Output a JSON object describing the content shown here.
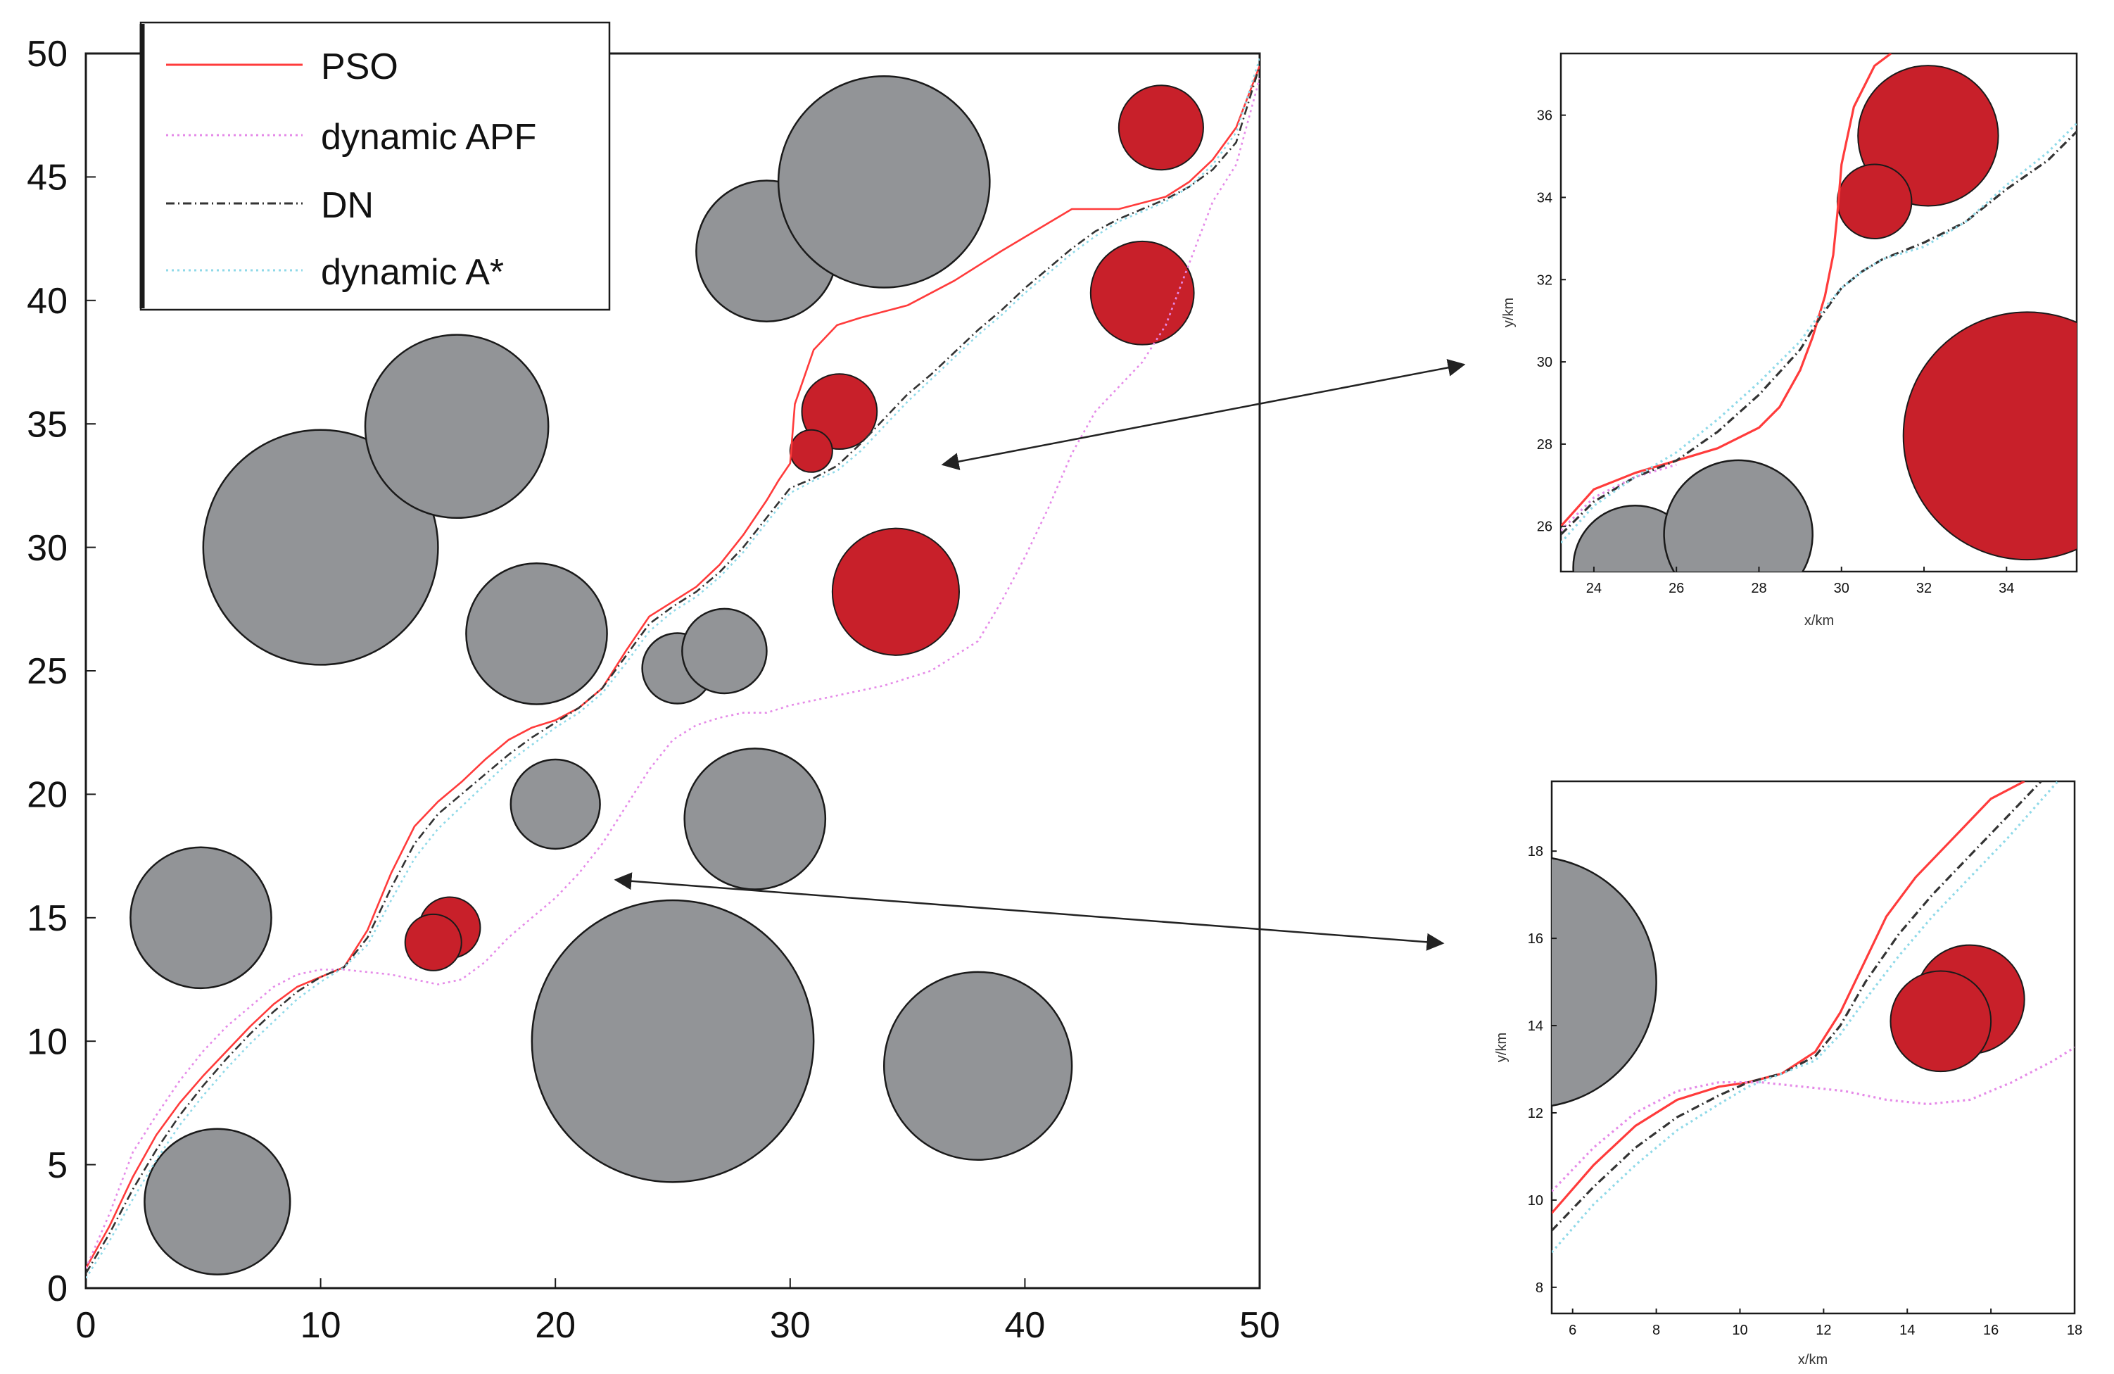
{
  "colors": {
    "pso": "#ff3b3b",
    "apf": "#e58ae8",
    "dn": "#333333",
    "astar": "#8fd9e8",
    "static_obstacle": "#929497",
    "dynamic_obstacle": "#c8202a",
    "outline": "#1a1a1a"
  },
  "chart_data": [
    {
      "id": "main",
      "type": "line",
      "title": "",
      "xlabel": "",
      "ylabel": "",
      "xlim": [
        0,
        50
      ],
      "ylim": [
        0,
        50
      ],
      "xticks": [
        0,
        10,
        20,
        30,
        40,
        50
      ],
      "yticks": [
        0,
        5,
        10,
        15,
        20,
        25,
        30,
        35,
        40,
        45,
        50
      ],
      "legend": {
        "position": "top-left",
        "entries": [
          {
            "label": "PSO",
            "series": "pso"
          },
          {
            "label": "dynamic APF",
            "series": "apf"
          },
          {
            "label": "DN",
            "series": "dn"
          },
          {
            "label": "dynamic A*",
            "series": "astar"
          }
        ]
      },
      "static_obstacles": [
        {
          "cx": 5.6,
          "cy": 3.5,
          "r": 3.1
        },
        {
          "cx": 4.9,
          "cy": 15.0,
          "r": 3.0
        },
        {
          "cx": 10.0,
          "cy": 30.0,
          "r": 5.0
        },
        {
          "cx": 15.8,
          "cy": 34.9,
          "r": 3.9
        },
        {
          "cx": 19.2,
          "cy": 26.5,
          "r": 3.0
        },
        {
          "cx": 20.0,
          "cy": 19.6,
          "r": 1.9
        },
        {
          "cx": 25.0,
          "cy": 10.0,
          "r": 6.0
        },
        {
          "cx": 25.2,
          "cy": 25.1,
          "r": 1.5
        },
        {
          "cx": 27.2,
          "cy": 25.8,
          "r": 1.8
        },
        {
          "cx": 28.5,
          "cy": 19.0,
          "r": 3.0
        },
        {
          "cx": 29.0,
          "cy": 42.0,
          "r": 3.0
        },
        {
          "cx": 34.0,
          "cy": 44.8,
          "r": 4.5
        },
        {
          "cx": 38.0,
          "cy": 9.0,
          "r": 4.0
        }
      ],
      "dynamic_obstacles": [
        {
          "cx": 15.5,
          "cy": 14.6,
          "r": 1.3
        },
        {
          "cx": 14.8,
          "cy": 14.0,
          "r": 1.2
        },
        {
          "cx": 32.1,
          "cy": 35.5,
          "r": 1.6
        },
        {
          "cx": 30.9,
          "cy": 33.9,
          "r": 0.9
        },
        {
          "cx": 34.5,
          "cy": 28.2,
          "r": 2.7
        },
        {
          "cx": 45.0,
          "cy": 40.3,
          "r": 2.2
        },
        {
          "cx": 45.8,
          "cy": 47.0,
          "r": 1.8
        }
      ],
      "series": [
        {
          "name": "PSO",
          "key": "pso",
          "style": "solid",
          "x": [
            0,
            1,
            2,
            3,
            4,
            5,
            6,
            7,
            8,
            9,
            10,
            11,
            12,
            13,
            14,
            15,
            16,
            17,
            18,
            19,
            20,
            21,
            22,
            23,
            24,
            25,
            26,
            27,
            28,
            29,
            29.5,
            30,
            30.2,
            31,
            32,
            33,
            35,
            37,
            39,
            42,
            44,
            46,
            47,
            48,
            49,
            50
          ],
          "y": [
            0.8,
            2.5,
            4.5,
            6.2,
            7.5,
            8.6,
            9.6,
            10.6,
            11.5,
            12.2,
            12.6,
            13.0,
            14.5,
            16.8,
            18.7,
            19.7,
            20.5,
            21.4,
            22.2,
            22.7,
            23.0,
            23.5,
            24.3,
            25.8,
            27.2,
            27.8,
            28.4,
            29.3,
            30.5,
            31.9,
            32.7,
            33.4,
            35.8,
            38.0,
            39.0,
            39.3,
            39.8,
            40.8,
            42.0,
            43.7,
            43.7,
            44.2,
            44.8,
            45.7,
            47.0,
            49.5
          ]
        },
        {
          "name": "dynamic APF",
          "key": "apf",
          "style": "dotted",
          "x": [
            0,
            1,
            2,
            3,
            4,
            5,
            6,
            7,
            8,
            9,
            10,
            11,
            12,
            13,
            14,
            15,
            16,
            17,
            18,
            19,
            20,
            21,
            22,
            23,
            24,
            25,
            26,
            27,
            28,
            29,
            30,
            32,
            34,
            36,
            38,
            39,
            40,
            41,
            42,
            43,
            44,
            45,
            46,
            47,
            48,
            49,
            50
          ],
          "y": [
            0.8,
            3.0,
            5.5,
            7.0,
            8.4,
            9.6,
            10.6,
            11.4,
            12.2,
            12.7,
            12.9,
            12.9,
            12.8,
            12.7,
            12.5,
            12.3,
            12.5,
            13.2,
            14.2,
            15.0,
            15.8,
            16.8,
            18.0,
            19.5,
            21.0,
            22.2,
            22.8,
            23.1,
            23.3,
            23.3,
            23.6,
            24.0,
            24.4,
            25.0,
            26.2,
            27.8,
            29.6,
            31.6,
            33.8,
            35.5,
            36.5,
            37.5,
            39.0,
            41.5,
            44.0,
            45.5,
            49.0
          ]
        },
        {
          "name": "DN",
          "key": "dn",
          "style": "dashdot",
          "x": [
            0,
            1,
            2,
            3,
            4,
            5,
            6,
            7,
            8,
            9,
            10,
            11,
            12,
            13,
            14,
            15,
            16,
            17,
            18,
            19,
            20,
            21,
            22,
            23,
            24,
            25,
            26,
            27,
            28,
            29,
            30,
            31,
            32,
            33,
            34,
            35,
            36,
            37,
            38,
            39,
            40,
            41,
            42,
            43,
            44,
            45,
            46,
            47,
            48,
            49,
            50
          ],
          "y": [
            0.6,
            2.2,
            4.0,
            5.6,
            7.0,
            8.2,
            9.3,
            10.3,
            11.2,
            12.0,
            12.6,
            13.0,
            14.2,
            16.2,
            18.0,
            19.2,
            20.0,
            20.8,
            21.6,
            22.3,
            22.9,
            23.5,
            24.3,
            25.6,
            26.9,
            27.6,
            28.2,
            29.0,
            30.0,
            31.2,
            32.4,
            32.8,
            33.3,
            34.2,
            35.2,
            36.2,
            37.0,
            37.9,
            38.8,
            39.6,
            40.5,
            41.3,
            42.1,
            42.8,
            43.3,
            43.7,
            44.1,
            44.6,
            45.3,
            46.4,
            49.5
          ]
        },
        {
          "name": "dynamic A*",
          "key": "astar",
          "style": "dotted",
          "x": [
            0,
            1,
            2,
            3,
            4,
            5,
            6,
            7,
            8,
            9,
            10,
            11,
            12,
            13,
            14,
            15,
            16,
            17,
            18,
            19,
            20,
            21,
            22,
            23,
            24,
            25,
            26,
            27,
            28,
            29,
            30,
            31,
            32,
            33,
            34,
            35,
            36,
            37,
            38,
            39,
            40,
            41,
            42,
            43,
            44,
            45,
            46,
            47,
            48,
            49,
            50
          ],
          "y": [
            0.4,
            1.9,
            3.6,
            5.2,
            6.6,
            7.8,
            8.9,
            9.9,
            10.8,
            11.7,
            12.4,
            13.0,
            13.9,
            15.7,
            17.4,
            18.6,
            19.5,
            20.4,
            21.3,
            22.0,
            22.7,
            23.3,
            24.1,
            25.3,
            26.6,
            27.4,
            28.0,
            28.8,
            29.8,
            31.0,
            32.2,
            32.7,
            33.1,
            33.9,
            34.9,
            35.9,
            36.8,
            37.7,
            38.6,
            39.4,
            40.3,
            41.1,
            41.9,
            42.6,
            43.2,
            43.6,
            44.0,
            44.6,
            45.5,
            46.8,
            49.8
          ]
        }
      ]
    },
    {
      "id": "inset-top",
      "type": "line",
      "xlabel": "x/km",
      "ylabel": "y/km",
      "xlim": [
        23.2,
        35.7
      ],
      "ylim": [
        24.9,
        37.5
      ],
      "xticks": [
        24,
        26,
        28,
        30,
        32,
        34
      ],
      "yticks": [
        26,
        28,
        30,
        32,
        34,
        36
      ],
      "static_obstacles": [
        {
          "cx": 25.0,
          "cy": 25.0,
          "r": 1.5
        },
        {
          "cx": 27.5,
          "cy": 25.8,
          "r": 1.8
        }
      ],
      "dynamic_obstacles": [
        {
          "cx": 32.1,
          "cy": 35.5,
          "r": 1.7
        },
        {
          "cx": 34.5,
          "cy": 28.2,
          "r": 3.0
        },
        {
          "cx": 30.8,
          "cy": 33.9,
          "r": 0.9
        }
      ],
      "series": [
        {
          "name": "PSO",
          "key": "pso",
          "style": "solid",
          "x": [
            23.2,
            24,
            25,
            26,
            27,
            28,
            28.5,
            29,
            29.3,
            29.6,
            29.8,
            29.9,
            30.0,
            30.3,
            30.8,
            31.2
          ],
          "y": [
            26.0,
            26.9,
            27.3,
            27.6,
            27.9,
            28.4,
            28.9,
            29.8,
            30.6,
            31.6,
            32.6,
            33.6,
            34.8,
            36.2,
            37.2,
            37.5
          ]
        },
        {
          "name": "dynamic APF",
          "key": "apf",
          "style": "dotted",
          "x": [
            23.2,
            24,
            25,
            26
          ],
          "y": [
            25.9,
            26.7,
            27.2,
            27.5
          ]
        },
        {
          "name": "DN",
          "key": "dn",
          "style": "dashdot",
          "x": [
            23.2,
            24,
            25,
            26,
            27,
            28,
            29,
            29.5,
            30,
            30.5,
            31,
            32,
            33,
            34,
            35,
            35.7
          ],
          "y": [
            25.8,
            26.6,
            27.2,
            27.6,
            28.3,
            29.2,
            30.3,
            31.1,
            31.8,
            32.2,
            32.5,
            32.9,
            33.4,
            34.2,
            34.9,
            35.6
          ]
        },
        {
          "name": "dynamic A*",
          "key": "astar",
          "style": "dotted",
          "x": [
            23.2,
            24,
            25,
            26,
            27,
            28,
            29,
            29.5,
            30,
            30.5,
            31,
            32,
            33,
            34,
            35,
            35.7
          ],
          "y": [
            25.6,
            26.5,
            27.2,
            27.8,
            28.6,
            29.5,
            30.5,
            31.2,
            31.8,
            32.2,
            32.5,
            32.8,
            33.4,
            34.3,
            35.1,
            35.8
          ]
        }
      ]
    },
    {
      "id": "inset-bottom",
      "type": "line",
      "xlabel": "x/km",
      "ylabel": "y/km",
      "xlim": [
        5.5,
        18
      ],
      "ylim": [
        7.4,
        19.6
      ],
      "xticks": [
        6,
        8,
        10,
        12,
        14,
        16,
        18
      ],
      "yticks": [
        8,
        10,
        12,
        14,
        16,
        18
      ],
      "static_obstacles": [
        {
          "cx": 5.0,
          "cy": 15.0,
          "r": 3.0
        }
      ],
      "dynamic_obstacles": [
        {
          "cx": 15.5,
          "cy": 14.6,
          "r": 1.3
        },
        {
          "cx": 14.8,
          "cy": 14.1,
          "r": 1.2
        }
      ],
      "series": [
        {
          "name": "PSO",
          "key": "pso",
          "style": "solid",
          "x": [
            5.5,
            6.5,
            7.5,
            8.5,
            9.5,
            10.2,
            11,
            11.8,
            12.4,
            13,
            13.5,
            14.2,
            15,
            16,
            16.8
          ],
          "y": [
            9.7,
            10.8,
            11.7,
            12.3,
            12.6,
            12.7,
            12.9,
            13.4,
            14.3,
            15.5,
            16.5,
            17.4,
            18.2,
            19.2,
            19.6
          ]
        },
        {
          "name": "dynamic APF",
          "key": "apf",
          "style": "dotted",
          "x": [
            5.5,
            6.5,
            7.5,
            8.5,
            9.5,
            10.5,
            11.5,
            12.5,
            13.5,
            14.5,
            15.5,
            16.5,
            17.5,
            18
          ],
          "y": [
            10.2,
            11.2,
            12.0,
            12.5,
            12.7,
            12.7,
            12.6,
            12.5,
            12.3,
            12.2,
            12.3,
            12.7,
            13.2,
            13.5
          ]
        },
        {
          "name": "DN",
          "key": "dn",
          "style": "dashdot",
          "x": [
            5.5,
            6.5,
            7.5,
            8.5,
            9.5,
            10.2,
            11,
            11.8,
            12.4,
            13,
            13.8,
            14.6,
            15.4,
            16.4,
            17.2
          ],
          "y": [
            9.3,
            10.3,
            11.2,
            11.9,
            12.4,
            12.7,
            12.9,
            13.3,
            14.0,
            15.0,
            16.1,
            17.0,
            17.8,
            18.8,
            19.6
          ]
        },
        {
          "name": "dynamic A*",
          "key": "astar",
          "style": "dotted",
          "x": [
            5.5,
            6.5,
            7.5,
            8.5,
            9.5,
            10.2,
            11,
            11.8,
            12.4,
            13,
            13.8,
            14.6,
            15.4,
            16.4,
            17.6
          ],
          "y": [
            8.8,
            9.9,
            10.8,
            11.6,
            12.2,
            12.6,
            12.9,
            13.2,
            13.8,
            14.6,
            15.6,
            16.5,
            17.3,
            18.3,
            19.6
          ]
        }
      ]
    }
  ]
}
